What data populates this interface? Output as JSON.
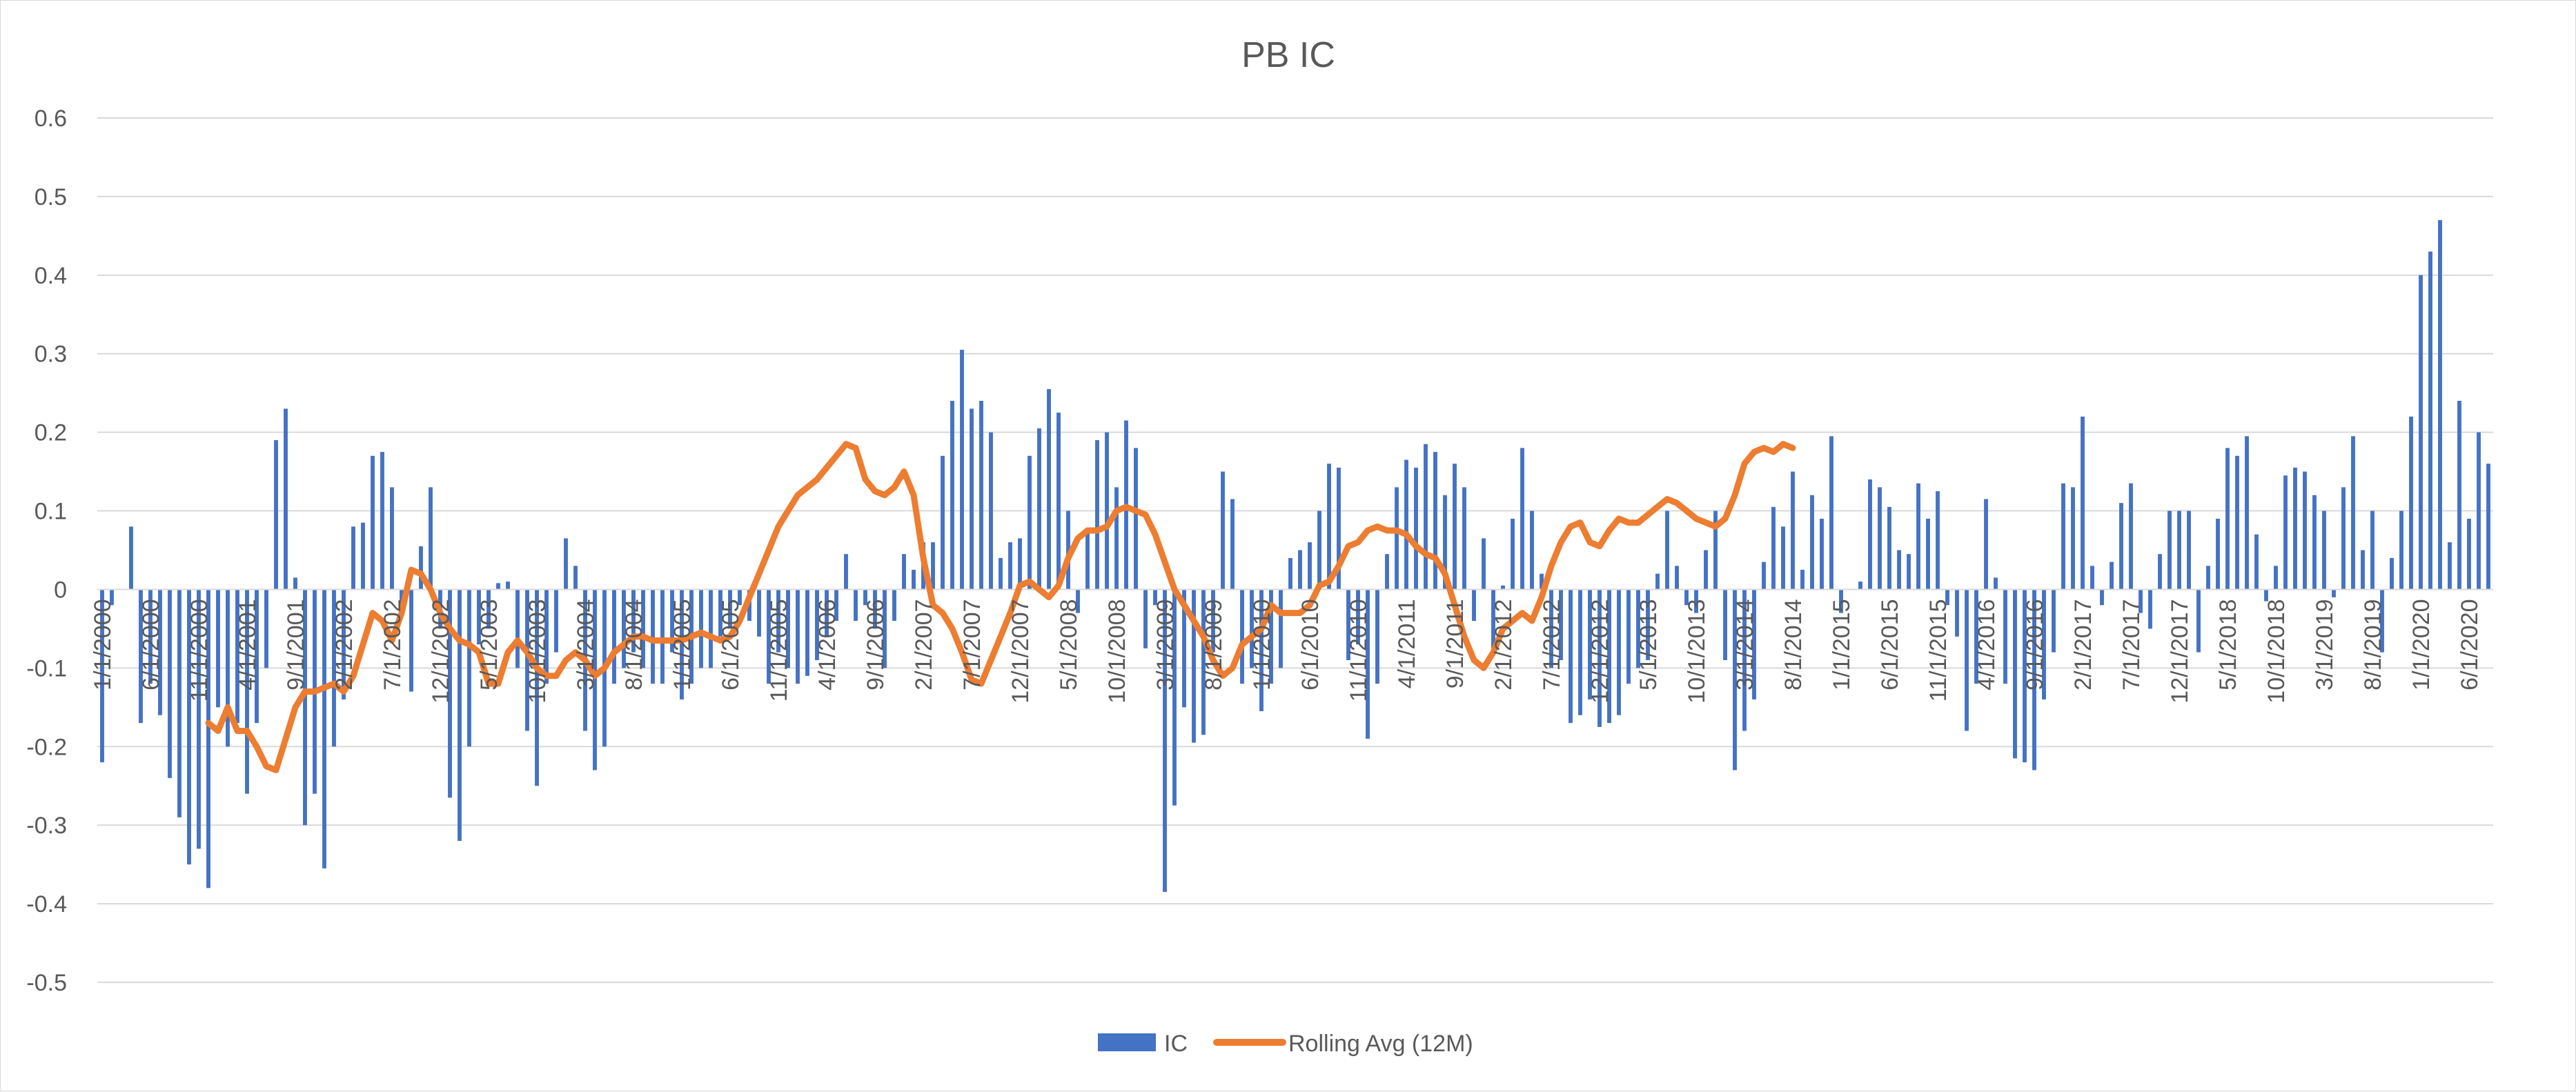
{
  "chart_data": {
    "type": "bar",
    "title": "PB IC",
    "xlabel": "",
    "ylabel": "",
    "ylim": [
      -0.5,
      0.6
    ],
    "yticks": [
      "0.6",
      "0.5",
      "0.4",
      "0.3",
      "0.2",
      "0.1",
      "0",
      "-0.1",
      "-0.2",
      "-0.3",
      "-0.4",
      "-0.5"
    ],
    "grid": true,
    "legend_position": "bottom",
    "x_tick_labels": [
      "1/1/2000",
      "6/1/2000",
      "11/1/2000",
      "4/1/2001",
      "9/1/2001",
      "2/1/2002",
      "7/1/2002",
      "12/1/2002",
      "5/1/2003",
      "10/1/2003",
      "3/1/2004",
      "8/1/2004",
      "1/1/2005",
      "6/1/2005",
      "11/1/2005",
      "4/1/2006",
      "9/1/2006",
      "2/1/2007",
      "7/1/2007",
      "12/1/2007",
      "5/1/2008",
      "10/1/2008",
      "3/1/2009",
      "8/1/2009",
      "1/1/2010",
      "6/1/2010",
      "11/1/2010",
      "4/1/2011",
      "9/1/2011",
      "2/1/2012",
      "7/1/2012",
      "12/1/2012",
      "5/1/2013",
      "10/1/2013",
      "3/1/2014",
      "8/1/2014",
      "1/1/2015",
      "6/1/2015",
      "11/1/2015",
      "4/1/2016",
      "9/1/2016",
      "2/1/2017",
      "7/1/2017",
      "12/1/2017",
      "5/1/2018",
      "10/1/2018",
      "3/1/2019",
      "8/1/2019",
      "1/1/2020",
      "6/1/2020"
    ],
    "series": [
      {
        "name": "IC",
        "type": "bar",
        "color": "#4472C4",
        "values": [
          -0.22,
          -0.02,
          0.0,
          0.08,
          -0.17,
          -0.12,
          -0.16,
          -0.24,
          -0.29,
          -0.35,
          -0.33,
          -0.38,
          -0.15,
          -0.2,
          -0.17,
          -0.26,
          -0.17,
          -0.1,
          0.19,
          0.23,
          0.015,
          -0.3,
          -0.26,
          -0.355,
          -0.2,
          -0.14,
          0.08,
          0.085,
          0.17,
          0.175,
          0.13,
          -0.03,
          -0.13,
          0.055,
          0.13,
          -0.05,
          -0.265,
          -0.32,
          -0.2,
          -0.07,
          -0.05,
          0.008,
          0.01,
          -0.1,
          -0.18,
          -0.25,
          -0.12,
          -0.08,
          0.065,
          0.03,
          -0.18,
          -0.23,
          -0.2,
          -0.12,
          -0.1,
          -0.08,
          -0.1,
          -0.12,
          -0.12,
          -0.08,
          -0.14,
          -0.12,
          -0.1,
          -0.1,
          -0.06,
          -0.05,
          -0.02,
          -0.04,
          -0.06,
          -0.12,
          -0.08,
          -0.1,
          -0.12,
          -0.11,
          -0.09,
          -0.06,
          -0.04,
          0.045,
          -0.04,
          -0.02,
          -0.05,
          -0.1,
          -0.04,
          0.045,
          0.025,
          0.06,
          0.06,
          0.17,
          0.24,
          0.305,
          0.23,
          0.24,
          0.2,
          0.04,
          0.06,
          0.065,
          0.17,
          0.205,
          0.255,
          0.225,
          0.1,
          -0.03,
          0.075,
          0.19,
          0.2,
          0.13,
          0.215,
          0.18,
          -0.075,
          -0.02,
          -0.385,
          -0.275,
          -0.15,
          -0.195,
          -0.185,
          -0.08,
          0.15,
          0.115,
          -0.12,
          -0.1,
          -0.155,
          -0.12,
          -0.1,
          0.04,
          0.05,
          0.06,
          0.1,
          0.16,
          0.155,
          -0.09,
          -0.07,
          -0.19,
          -0.12,
          0.045,
          0.13,
          0.165,
          0.155,
          0.185,
          0.175,
          0.12,
          0.16,
          0.13,
          -0.04,
          0.065,
          -0.075,
          0.005,
          0.09,
          0.18,
          0.1,
          0.02,
          -0.1,
          -0.09,
          -0.17,
          -0.16,
          -0.14,
          -0.175,
          -0.17,
          -0.16,
          -0.12,
          -0.1,
          -0.09,
          0.02,
          0.1,
          0.03,
          -0.02,
          -0.03,
          0.05,
          0.1,
          -0.09,
          -0.23,
          -0.18,
          -0.14,
          0.035,
          0.105,
          0.08,
          0.15,
          0.025,
          0.12,
          0.09,
          0.195,
          -0.03,
          0.0,
          0.01,
          0.14,
          0.13,
          0.105,
          0.05,
          0.045,
          0.135,
          0.09,
          0.125,
          -0.02,
          -0.06,
          -0.18,
          -0.12,
          0.115,
          0.015,
          -0.12,
          -0.215,
          -0.22,
          -0.23,
          -0.14,
          -0.08,
          0.135,
          0.13,
          0.22,
          0.03,
          -0.02,
          0.035,
          0.11,
          0.135,
          -0.03,
          -0.05,
          0.045,
          0.1,
          0.1,
          0.1,
          -0.08,
          0.03,
          0.09,
          0.18,
          0.17,
          0.195,
          0.07,
          -0.015,
          0.03,
          0.145,
          0.155,
          0.15,
          0.12,
          0.1,
          -0.01,
          0.13,
          0.195,
          0.05,
          0.1,
          -0.08,
          0.04,
          0.1,
          0.22,
          0.4,
          0.43,
          0.47,
          0.06,
          0.24,
          0.09,
          0.2,
          0.16
        ]
      },
      {
        "name": "Rolling Avg (12M)",
        "type": "line",
        "color": "#ED7D31",
        "start_index": 11,
        "values": [
          -0.17,
          -0.18,
          -0.15,
          -0.18,
          -0.18,
          -0.2,
          -0.225,
          -0.23,
          -0.19,
          -0.15,
          -0.13,
          -0.13,
          -0.125,
          -0.12,
          -0.13,
          -0.11,
          -0.07,
          -0.03,
          -0.04,
          -0.065,
          -0.03,
          0.025,
          0.02,
          0.0,
          -0.03,
          -0.05,
          -0.065,
          -0.07,
          -0.08,
          -0.12,
          -0.12,
          -0.08,
          -0.065,
          -0.08,
          -0.1,
          -0.11,
          -0.11,
          -0.09,
          -0.08,
          -0.09,
          -0.11,
          -0.1,
          -0.08,
          -0.07,
          -0.06,
          -0.06,
          -0.065,
          -0.065,
          -0.065,
          -0.065,
          -0.06,
          -0.055,
          -0.06,
          -0.065,
          -0.06,
          -0.04,
          -0.01,
          0.02,
          0.05,
          0.08,
          0.1,
          0.12,
          0.13,
          0.14,
          0.155,
          0.17,
          0.185,
          0.18,
          0.14,
          0.125,
          0.12,
          0.13,
          0.15,
          0.12,
          0.04,
          -0.02,
          -0.03,
          -0.05,
          -0.08,
          -0.115,
          -0.12,
          -0.09,
          -0.06,
          -0.03,
          0.005,
          0.01,
          0.0,
          -0.01,
          0.005,
          0.04,
          0.065,
          0.075,
          0.075,
          0.08,
          0.1,
          0.105,
          0.1,
          0.095,
          0.07,
          0.035,
          0.0,
          -0.02,
          -0.04,
          -0.06,
          -0.09,
          -0.11,
          -0.1,
          -0.07,
          -0.06,
          -0.05,
          -0.02,
          -0.03,
          -0.03,
          -0.03,
          -0.02,
          0.005,
          0.01,
          0.03,
          0.055,
          0.06,
          0.075,
          0.08,
          0.075,
          0.075,
          0.07,
          0.055,
          0.045,
          0.04,
          0.02,
          -0.02,
          -0.06,
          -0.09,
          -0.1,
          -0.08,
          -0.05,
          -0.04,
          -0.03,
          -0.04,
          -0.01,
          0.03,
          0.06,
          0.08,
          0.085,
          0.06,
          0.055,
          0.075,
          0.09,
          0.085,
          0.085,
          0.095,
          0.105,
          0.115,
          0.11,
          0.1,
          0.09,
          0.085,
          0.08,
          0.09,
          0.12,
          0.16,
          0.175,
          0.18,
          0.175,
          0.185,
          0.18
        ]
      }
    ]
  }
}
